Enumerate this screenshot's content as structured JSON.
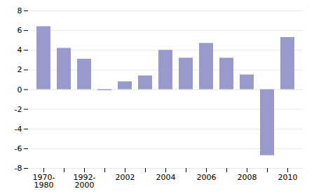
{
  "chart_data": {
    "type": "bar",
    "categories": [
      "1970-\n1980",
      null,
      "1992-\n2000",
      null,
      "2002",
      null,
      "2004",
      null,
      "2006",
      null,
      "2008",
      null,
      "2010"
    ],
    "values": [
      6.4,
      4.2,
      3.1,
      -0.1,
      0.8,
      1.4,
      4.0,
      3.2,
      4.7,
      3.2,
      1.5,
      -6.7,
      5.3
    ],
    "color": "#9999CC",
    "ylim": [
      -8,
      8
    ],
    "yticks": [
      -8,
      -6,
      -4,
      -2,
      0,
      2,
      4,
      6,
      8
    ],
    "grid": true
  }
}
